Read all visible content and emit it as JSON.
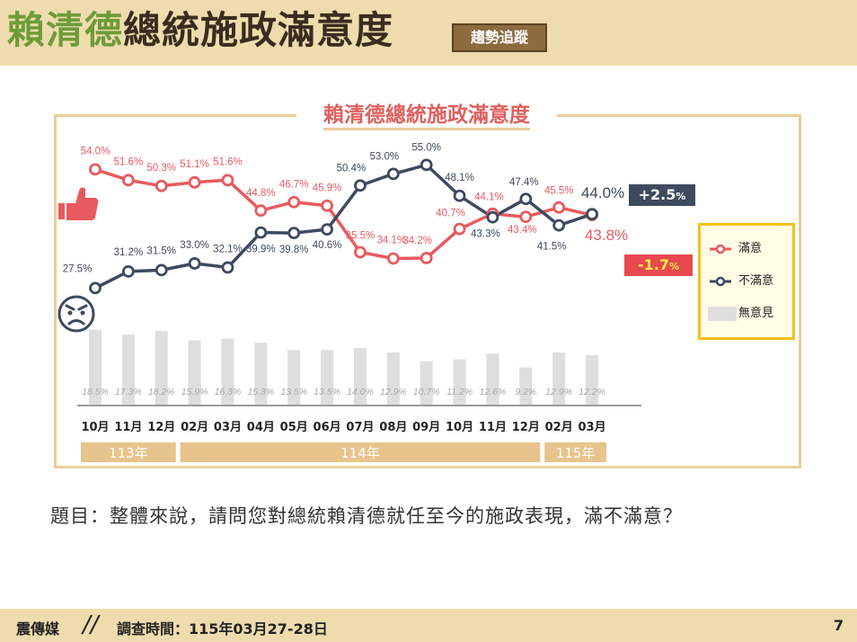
{
  "header": {
    "title_name": "賴清德",
    "title_rest": "總統施政滿意度",
    "badge": "趨勢追蹤"
  },
  "chart_data": {
    "type": "line",
    "title": "賴清德總統施政滿意度",
    "categories": [
      "10月",
      "11月",
      "12月",
      "02月",
      "03月",
      "04月",
      "05月",
      "06月",
      "07月",
      "08月",
      "09月",
      "10月",
      "11月",
      "12月",
      "02月",
      "03月"
    ],
    "year_groups": [
      {
        "label": "113年",
        "from": 0,
        "to": 2
      },
      {
        "label": "114年",
        "from": 3,
        "to": 13
      },
      {
        "label": "115年",
        "from": 14,
        "to": 15
      }
    ],
    "series": [
      {
        "name": "滿意",
        "color": "#e85a5f",
        "values": [
          54.0,
          51.6,
          50.3,
          51.1,
          51.6,
          44.8,
          46.7,
          45.9,
          35.5,
          34.1,
          34.2,
          40.7,
          44.1,
          43.4,
          45.5,
          43.8
        ]
      },
      {
        "name": "不滿意",
        "color": "#3e4a5e",
        "values": [
          27.5,
          31.2,
          31.5,
          33.0,
          32.1,
          39.9,
          39.8,
          40.6,
          50.4,
          53.0,
          55.0,
          48.1,
          43.3,
          47.4,
          41.5,
          44.0
        ]
      },
      {
        "name": "無意見",
        "type": "bar",
        "color": "#dedede",
        "values": [
          18.5,
          17.3,
          18.2,
          15.9,
          16.3,
          15.3,
          13.5,
          13.5,
          14.0,
          12.9,
          10.7,
          11.2,
          12.6,
          9.2,
          12.9,
          12.2
        ]
      }
    ],
    "labels_sat": [
      "54.0%",
      "51.6%",
      "50.3%",
      "51.1%",
      "51.6%",
      "44.8%",
      "46.7%",
      "45.9%",
      "35.5%",
      "34.1%",
      "34.2%",
      "40.7%",
      "44.1%",
      "43.4%",
      "45.5%",
      "43.8%"
    ],
    "labels_dis": [
      "27.5%",
      "31.2%",
      "31.5%",
      "33.0%",
      "32.1%",
      "39.9%",
      "39.8%",
      "40.6%",
      "50.4%",
      "53.0%",
      "55.0%",
      "48.1%",
      "43.3%",
      "47.4%",
      "41.5%",
      "44.0%"
    ],
    "labels_none": [
      "18.5%",
      "17.3%",
      "18.2%",
      "15.9%",
      "16.3%",
      "15.3%",
      "13.5%",
      "13.5%",
      "14.0%",
      "12.9%",
      "10.7%",
      "11.2%",
      "12.6%",
      "9.2%",
      "12.9%",
      "12.2%"
    ],
    "change_dis": "+2.5",
    "change_sat": "-1.7",
    "percent_sign": "%",
    "legend_placement": "right"
  },
  "legend": {
    "sat": "滿意",
    "dis": "不滿意",
    "none": "無意見"
  },
  "question": "題目：整體來說，請問您對總統賴清德就任至今的施政表現，滿不滿意？",
  "footer": {
    "brand": "震傳媒",
    "slash": "//",
    "survey_time": "調查時間：115年03月27-28日",
    "page": "7"
  },
  "colors": {
    "header_bg": "#efdcae",
    "title_green": "#6d9c3a",
    "sat": "#e85a5f",
    "dis": "#3e4a5e",
    "year_band": "#e6c48c"
  },
  "icons": [
    "thumbs-up-icon",
    "angry-face-icon"
  ]
}
